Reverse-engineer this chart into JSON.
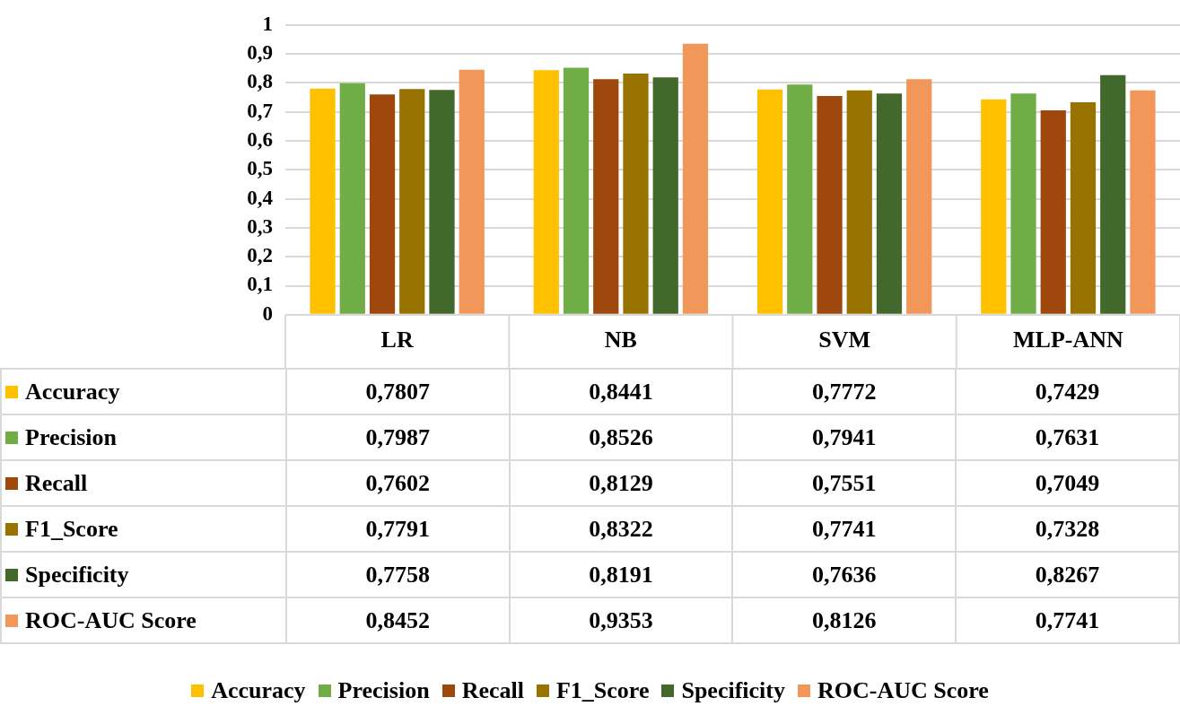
{
  "chart_data": {
    "type": "bar",
    "categories": [
      "LR",
      "NB",
      "SVM",
      "MLP-ANN"
    ],
    "series": [
      {
        "name": "Accuracy",
        "color": "#ffc000",
        "values": [
          0.7807,
          0.8441,
          0.7772,
          0.7429
        ],
        "value_labels": [
          "0,7807",
          "0,8441",
          "0,7772",
          "0,7429"
        ]
      },
      {
        "name": "Precision",
        "color": "#70ad47",
        "values": [
          0.7987,
          0.8526,
          0.7941,
          0.7631
        ],
        "value_labels": [
          "0,7987",
          "0,8526",
          "0,7941",
          "0,7631"
        ]
      },
      {
        "name": "Recall",
        "color": "#9e480e",
        "values": [
          0.7602,
          0.8129,
          0.7551,
          0.7049
        ],
        "value_labels": [
          "0,7602",
          "0,8129",
          "0,7551",
          "0,7049"
        ]
      },
      {
        "name": "F1_Score",
        "color": "#997300",
        "values": [
          0.7791,
          0.8322,
          0.7741,
          0.7328
        ],
        "value_labels": [
          "0,7791",
          "0,8322",
          "0,7741",
          "0,7328"
        ]
      },
      {
        "name": "Specificity",
        "color": "#43682b",
        "values": [
          0.7758,
          0.8191,
          0.7636,
          0.8267
        ],
        "value_labels": [
          "0,7758",
          "0,8191",
          "0,7636",
          "0,8267"
        ]
      },
      {
        "name": "ROC-AUC Score",
        "color": "#f1975a",
        "values": [
          0.8452,
          0.9353,
          0.8126,
          0.7741
        ],
        "value_labels": [
          "0,8452",
          "0,9353",
          "0,8126",
          "0,7741"
        ]
      }
    ],
    "ylim": [
      0,
      1
    ],
    "yticks": [
      0,
      {
        "value": 0.1,
        "label": "0,1"
      },
      {
        "value": 0.2,
        "label": "0,2"
      },
      {
        "value": 0.3,
        "label": "0,3"
      },
      {
        "value": 0.4,
        "label": "0,4"
      },
      {
        "value": 0.5,
        "label": "0,5"
      },
      {
        "value": 0.6,
        "label": "0,6"
      },
      {
        "value": 0.7,
        "label": "0,7"
      },
      {
        "value": 0.8,
        "label": "0,8"
      },
      {
        "value": 0.9,
        "label": "0,9"
      },
      1
    ],
    "grid": "y",
    "legend": "bottom"
  }
}
